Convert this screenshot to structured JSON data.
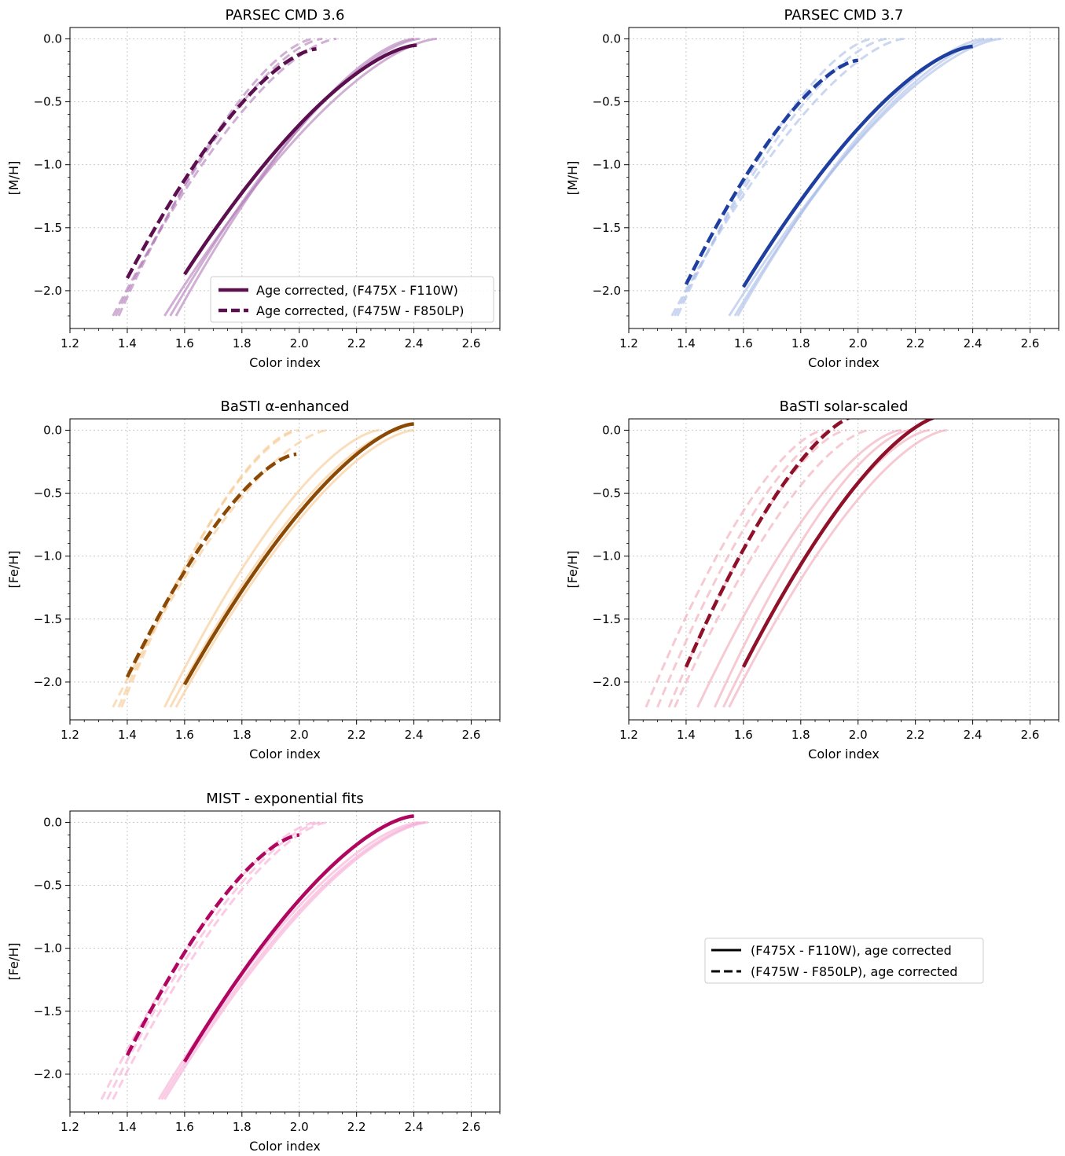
{
  "figure": {
    "x_tick_labels": [
      "1.2",
      "1.4",
      "1.6",
      "1.8",
      "2.0",
      "2.2",
      "2.4",
      "2.6"
    ],
    "y_tick_labels": [
      "0.0",
      "−0.5",
      "−1.0",
      "−1.5",
      "−2.0"
    ],
    "legend_solid_label": "(F475X - F110W), age corrected",
    "legend_dashed_label": "(F475W - F850LP), age corrected",
    "legend_line_color": "#000000"
  },
  "chart_data": [
    {
      "type": "line",
      "title": "PARSEC CMD 3.6",
      "xlabel": "Color index",
      "ylabel": "[M/H]",
      "xlim": [
        1.2,
        2.7
      ],
      "ylim": [
        -2.3,
        0.09
      ],
      "grid": true,
      "main_color": "#5b0f4f",
      "light_color": "#b07ab8",
      "legend": {
        "placement": "lower-right",
        "entries": [
          {
            "label": "Age corrected, (F475X - F110W)",
            "style": "solid"
          },
          {
            "label": "Age corrected, (F475W - F850LP)",
            "style": "dashed"
          }
        ]
      },
      "series": [
        {
          "role": "main",
          "style": "solid",
          "x0": 1.6,
          "x1": 2.41,
          "y0": -1.87,
          "y1": -0.05
        },
        {
          "role": "main",
          "style": "dashed",
          "x0": 1.4,
          "x1": 2.06,
          "y0": -1.9,
          "y1": -0.08
        },
        {
          "role": "variant",
          "style": "solid",
          "x0": 1.53,
          "x1": 2.48,
          "y0": -2.2,
          "y1": 0.0
        },
        {
          "role": "variant",
          "style": "solid",
          "x0": 1.55,
          "x1": 2.42,
          "y0": -2.2,
          "y1": 0.0
        },
        {
          "role": "variant",
          "style": "solid",
          "x0": 1.57,
          "x1": 2.4,
          "y0": -2.2,
          "y1": 0.0
        },
        {
          "role": "variant",
          "style": "dashed",
          "x0": 1.35,
          "x1": 2.13,
          "y0": -2.2,
          "y1": 0.0
        },
        {
          "role": "variant",
          "style": "dashed",
          "x0": 1.36,
          "x1": 2.08,
          "y0": -2.2,
          "y1": 0.0
        },
        {
          "role": "variant",
          "style": "dashed",
          "x0": 1.37,
          "x1": 2.05,
          "y0": -2.2,
          "y1": 0.0
        }
      ]
    },
    {
      "type": "line",
      "title": "PARSEC CMD 3.7",
      "xlabel": "Color index",
      "ylabel": "[M/H]",
      "xlim": [
        1.2,
        2.7
      ],
      "ylim": [
        -2.3,
        0.09
      ],
      "grid": true,
      "main_color": "#1e3fa0",
      "light_color": "#a9bde8",
      "series": [
        {
          "role": "main",
          "style": "solid",
          "x0": 1.6,
          "x1": 2.4,
          "y0": -1.97,
          "y1": -0.06
        },
        {
          "role": "main",
          "style": "dashed",
          "x0": 1.4,
          "x1": 2.0,
          "y0": -1.95,
          "y1": -0.17
        },
        {
          "role": "variant",
          "style": "solid",
          "x0": 1.55,
          "x1": 2.5,
          "y0": -2.2,
          "y1": 0.0
        },
        {
          "role": "variant",
          "style": "solid",
          "x0": 1.57,
          "x1": 2.47,
          "y0": -2.2,
          "y1": 0.0
        },
        {
          "role": "variant",
          "style": "solid",
          "x0": 1.58,
          "x1": 2.44,
          "y0": -2.2,
          "y1": 0.0
        },
        {
          "role": "variant",
          "style": "dashed",
          "x0": 1.35,
          "x1": 2.16,
          "y0": -2.2,
          "y1": 0.0
        },
        {
          "role": "variant",
          "style": "dashed",
          "x0": 1.36,
          "x1": 2.1,
          "y0": -2.2,
          "y1": 0.0
        },
        {
          "role": "variant",
          "style": "dashed",
          "x0": 1.37,
          "x1": 2.05,
          "y0": -2.2,
          "y1": 0.0
        }
      ]
    },
    {
      "type": "line",
      "title": "BaSTI α-enhanced",
      "xlabel": "Color index",
      "ylabel": "[Fe/H]",
      "xlim": [
        1.2,
        2.7
      ],
      "ylim": [
        -2.3,
        0.09
      ],
      "grid": true,
      "main_color": "#8a4a06",
      "light_color": "#f7c88f",
      "series": [
        {
          "role": "main",
          "style": "solid",
          "x0": 1.6,
          "x1": 2.4,
          "y0": -2.02,
          "y1": 0.05
        },
        {
          "role": "main",
          "style": "dashed",
          "x0": 1.4,
          "x1": 1.99,
          "y0": -1.96,
          "y1": -0.19
        },
        {
          "role": "variant",
          "style": "solid",
          "x0": 1.53,
          "x1": 2.28,
          "y0": -2.2,
          "y1": 0.0
        },
        {
          "role": "variant",
          "style": "solid",
          "x0": 1.55,
          "x1": 2.35,
          "y0": -2.2,
          "y1": 0.0
        },
        {
          "role": "variant",
          "style": "solid",
          "x0": 1.57,
          "x1": 2.4,
          "y0": -2.2,
          "y1": 0.0
        },
        {
          "role": "variant",
          "style": "dashed",
          "x0": 1.35,
          "x1": 2.1,
          "y0": -2.2,
          "y1": 0.0
        },
        {
          "role": "variant",
          "style": "dashed",
          "x0": 1.37,
          "x1": 2.0,
          "y0": -2.2,
          "y1": 0.0
        },
        {
          "role": "variant",
          "style": "dashed",
          "x0": 1.38,
          "x1": 1.99,
          "y0": -2.2,
          "y1": 0.0
        }
      ]
    },
    {
      "type": "line",
      "title": "BaSTI solar-scaled",
      "xlabel": "Color index",
      "ylabel": "[Fe/H]",
      "xlim": [
        1.2,
        2.7
      ],
      "ylim": [
        -2.3,
        0.09
      ],
      "grid": true,
      "main_color": "#8e1029",
      "light_color": "#f0a6b6",
      "series": [
        {
          "role": "main",
          "style": "solid",
          "x0": 1.6,
          "x1": 2.3,
          "y0": -1.88,
          "y1": 0.12
        },
        {
          "role": "main",
          "style": "dashed",
          "x0": 1.4,
          "x1": 2.0,
          "y0": -1.88,
          "y1": 0.12
        },
        {
          "role": "variant",
          "style": "solid",
          "x0": 1.44,
          "x1": 2.15,
          "y0": -2.2,
          "y1": 0.0
        },
        {
          "role": "variant",
          "style": "solid",
          "x0": 1.5,
          "x1": 2.18,
          "y0": -2.2,
          "y1": 0.0
        },
        {
          "role": "variant",
          "style": "solid",
          "x0": 1.53,
          "x1": 2.25,
          "y0": -2.2,
          "y1": 0.0
        },
        {
          "role": "variant",
          "style": "solid",
          "x0": 1.55,
          "x1": 2.31,
          "y0": -2.2,
          "y1": 0.0
        },
        {
          "role": "variant",
          "style": "dashed",
          "x0": 1.26,
          "x1": 1.88,
          "y0": -2.2,
          "y1": 0.0
        },
        {
          "role": "variant",
          "style": "dashed",
          "x0": 1.3,
          "x1": 1.92,
          "y0": -2.2,
          "y1": 0.0
        },
        {
          "role": "variant",
          "style": "dashed",
          "x0": 1.34,
          "x1": 1.96,
          "y0": -2.2,
          "y1": 0.0
        },
        {
          "role": "variant",
          "style": "dashed",
          "x0": 1.36,
          "x1": 2.04,
          "y0": -2.2,
          "y1": 0.0
        }
      ]
    },
    {
      "type": "line",
      "title": "MIST - exponential fits",
      "xlabel": "Color index",
      "ylabel": "[Fe/H]",
      "xlim": [
        1.2,
        2.7
      ],
      "ylim": [
        -2.3,
        0.09
      ],
      "grid": true,
      "main_color": "#b0065f",
      "light_color": "#f6a8d3",
      "series": [
        {
          "role": "main",
          "style": "solid",
          "x0": 1.6,
          "x1": 2.4,
          "y0": -1.9,
          "y1": 0.05
        },
        {
          "role": "main",
          "style": "dashed",
          "x0": 1.4,
          "x1": 2.0,
          "y0": -1.85,
          "y1": -0.1
        },
        {
          "role": "variant",
          "style": "solid",
          "x0": 1.51,
          "x1": 2.42,
          "y0": -2.2,
          "y1": 0.0
        },
        {
          "role": "variant",
          "style": "solid",
          "x0": 1.52,
          "x1": 2.44,
          "y0": -2.2,
          "y1": 0.0
        },
        {
          "role": "variant",
          "style": "solid",
          "x0": 1.53,
          "x1": 2.45,
          "y0": -2.2,
          "y1": 0.0
        },
        {
          "role": "variant",
          "style": "dashed",
          "x0": 1.31,
          "x1": 2.06,
          "y0": -2.2,
          "y1": 0.0
        },
        {
          "role": "variant",
          "style": "dashed",
          "x0": 1.33,
          "x1": 2.08,
          "y0": -2.2,
          "y1": 0.0
        },
        {
          "role": "variant",
          "style": "dashed",
          "x0": 1.35,
          "x1": 2.1,
          "y0": -2.2,
          "y1": 0.0
        }
      ]
    }
  ]
}
